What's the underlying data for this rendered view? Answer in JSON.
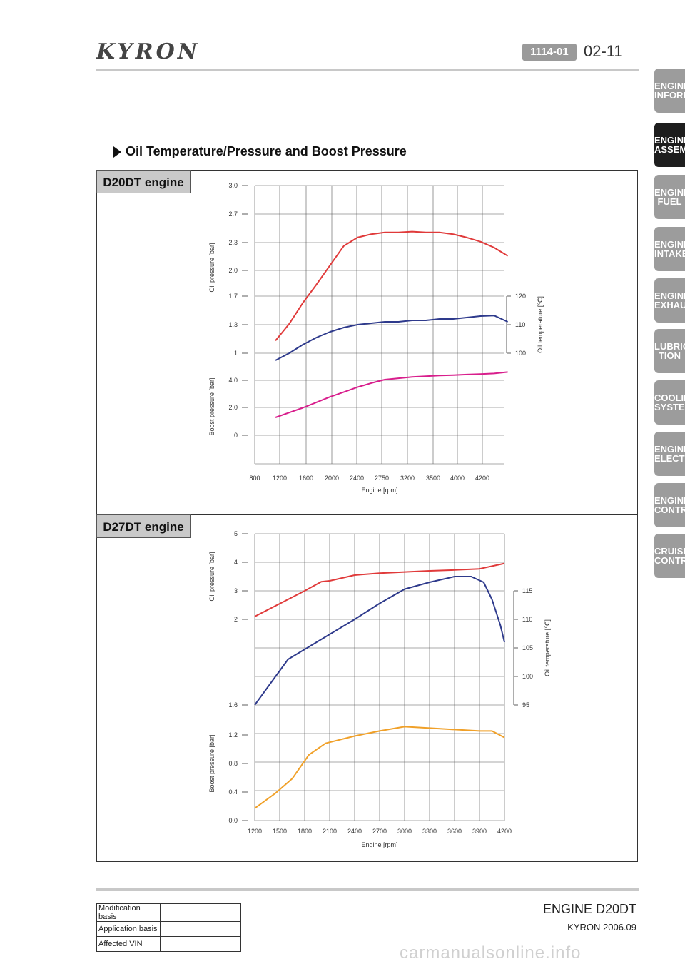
{
  "header": {
    "logo_text": "KYRON",
    "doc_code": "1114-01",
    "page_number": "02-11"
  },
  "side_tabs": [
    {
      "line1": "ENGINE",
      "line2": "INFORMA",
      "active": false
    },
    {
      "line1": "ENGINE",
      "line2": "ASSEMBL",
      "active": true
    },
    {
      "line1": "ENGINE",
      "line2": "FUEL",
      "active": false
    },
    {
      "line1": "ENGINE",
      "line2": "INTAKE",
      "active": false
    },
    {
      "line1": "ENGINE",
      "line2": "EXHAUST",
      "active": false
    },
    {
      "line1": "LUBRICA",
      "line2": "TION",
      "active": false
    },
    {
      "line1": "COOLING",
      "line2": "SYSTEM",
      "active": false
    },
    {
      "line1": "ENGINE",
      "line2": "ELECTRI",
      "active": false
    },
    {
      "line1": "ENGINE",
      "line2": "CONTRO",
      "active": false
    },
    {
      "line1": "CRUISE",
      "line2": "CONTRO",
      "active": false
    }
  ],
  "section_title": "Oil Temperature/Pressure and Boost Pressure",
  "chart_data": [
    {
      "panel_label": "D20DT engine",
      "type": "line",
      "xlabel": "Engine [rpm]",
      "x_ticks": [
        "800",
        "1200",
        "1600",
        "2000",
        "2400",
        "2750",
        "3200",
        "3500",
        "4000",
        "4200"
      ],
      "grid": true,
      "oil_pressure_axis": {
        "label": "Oil pressure [bar]",
        "ticks": [
          "1",
          "1.3",
          "1.7",
          "2.0",
          "2.3",
          "2.7",
          "3.0"
        ]
      },
      "boost_pressure_axis": {
        "label": "Boost pressure [bar]",
        "ticks": [
          "0",
          "2.0",
          "4.0"
        ]
      },
      "oil_temperature_axis": {
        "label": "Oil temperature [℃]",
        "ticks": [
          "100",
          "110",
          "120"
        ]
      },
      "series": [
        {
          "axis": "oil_pressure",
          "color": "#e03a3a",
          "x": [
            1000,
            1200,
            1400,
            1600,
            1800,
            2000,
            2200,
            2400,
            2600,
            2800,
            3000,
            3200,
            3400,
            3600,
            3800,
            4000,
            4200,
            4400
          ],
          "y": [
            1.15,
            1.35,
            1.6,
            1.82,
            2.05,
            2.28,
            2.38,
            2.42,
            2.44,
            2.44,
            2.45,
            2.44,
            2.44,
            2.42,
            2.38,
            2.33,
            2.26,
            2.16
          ]
        },
        {
          "axis": "oil_temperature",
          "color": "#2e3a8c",
          "x": [
            1000,
            1200,
            1400,
            1600,
            1800,
            2000,
            2200,
            2400,
            2600,
            2800,
            3000,
            3200,
            3400,
            3600,
            3800,
            4000,
            4200,
            4400
          ],
          "y": [
            97.5,
            100,
            103,
            105.5,
            107.5,
            109,
            110,
            110.5,
            111,
            111,
            111.5,
            111.5,
            112,
            112,
            112.5,
            113,
            113.2,
            111
          ]
        },
        {
          "axis": "boost_pressure",
          "color": "#d81e8c",
          "x": [
            1000,
            1200,
            1400,
            1600,
            1800,
            2000,
            2200,
            2400,
            2600,
            2800,
            3000,
            3200,
            3400,
            3600,
            3800,
            4000,
            4200,
            4400
          ],
          "y": [
            1.3,
            1.65,
            2.0,
            2.4,
            2.8,
            3.15,
            3.5,
            3.8,
            4.05,
            4.15,
            4.25,
            4.3,
            4.35,
            4.38,
            4.42,
            4.45,
            4.5,
            4.6
          ]
        }
      ]
    },
    {
      "panel_label": "D27DT engine",
      "type": "line",
      "xlabel": "Engine [rpm]",
      "x_ticks": [
        "1200",
        "1500",
        "1800",
        "2100",
        "2400",
        "2700",
        "3000",
        "3300",
        "3600",
        "3900",
        "4200"
      ],
      "grid": true,
      "oil_pressure_axis": {
        "label": "Oil pressure [bar]",
        "ticks": [
          "2",
          "3",
          "4",
          "5"
        ]
      },
      "boost_pressure_axis": {
        "label": "Boost pressure [bar]",
        "ticks": [
          "0.0",
          "0.4",
          "0.8",
          "1.2",
          "1.6"
        ]
      },
      "oil_temperature_axis": {
        "label": "Oil temperature [℃]",
        "ticks": [
          "95",
          "100",
          "105",
          "110",
          "115"
        ]
      },
      "series": [
        {
          "axis": "oil_pressure",
          "color": "#e03a3a",
          "x": [
            1200,
            1500,
            1800,
            2000,
            2100,
            2400,
            2700,
            3000,
            3300,
            3600,
            3900,
            4200
          ],
          "y": [
            2.1,
            2.55,
            3.0,
            3.32,
            3.35,
            3.55,
            3.62,
            3.66,
            3.7,
            3.73,
            3.77,
            3.96
          ]
        },
        {
          "axis": "oil_temperature",
          "color": "#2e3a8c",
          "x": [
            1200,
            1600,
            2000,
            2400,
            2700,
            3000,
            3300,
            3600,
            3800,
            3950,
            4050,
            4150,
            4200
          ],
          "y": [
            95,
            103,
            106.5,
            110,
            112.8,
            115.3,
            116.5,
            117.5,
            117.5,
            116.5,
            113.5,
            109,
            106
          ]
        },
        {
          "axis": "boost_pressure",
          "color": "#f0a028",
          "x": [
            1200,
            1450,
            1650,
            1850,
            2050,
            2400,
            2700,
            3000,
            3300,
            3600,
            3900,
            4050,
            4200
          ],
          "y": [
            0.17,
            0.38,
            0.58,
            0.91,
            1.07,
            1.17,
            1.24,
            1.3,
            1.28,
            1.26,
            1.24,
            1.24,
            1.15
          ]
        }
      ]
    }
  ],
  "footer": {
    "engine": "ENGINE D20DT",
    "model": "KYRON 2006.09",
    "modification_rows": [
      {
        "label": "Modification basis",
        "value": ""
      },
      {
        "label": "Application basis",
        "value": ""
      },
      {
        "label": "Affected VIN",
        "value": ""
      }
    ],
    "watermark": "carmanualsonline.info"
  }
}
